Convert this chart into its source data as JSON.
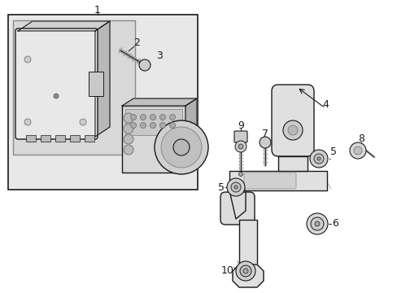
{
  "bg_color": "#ffffff",
  "lc": "#1a1a1a",
  "gray1": "#cccccc",
  "gray2": "#aaaaaa",
  "gray3": "#e8e8e8",
  "gray_fill": "#d8d8d8",
  "light_bg": "#e8e8e8",
  "figsize": [
    4.89,
    3.6
  ],
  "dpi": 100,
  "label_fontsize": 9
}
